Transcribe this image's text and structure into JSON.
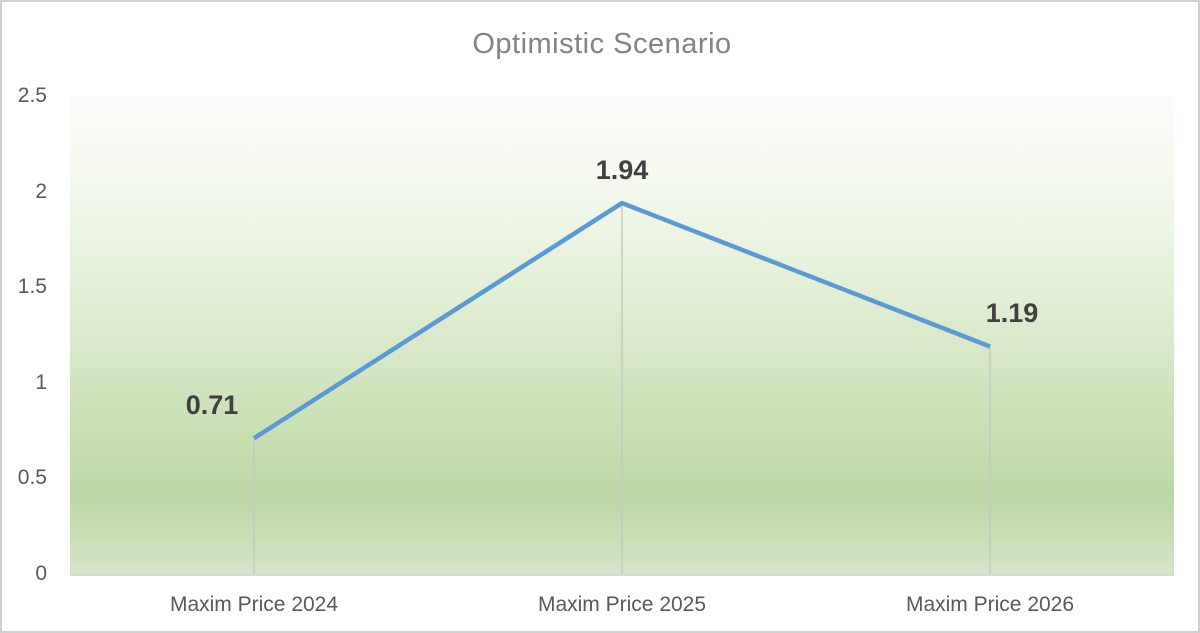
{
  "title": "Optimistic Scenario",
  "chart_data": {
    "type": "line",
    "title": "Optimistic Scenario",
    "categories": [
      "Maxim Price 2024",
      "Maxim Price 2025",
      "Maxim Price 2026"
    ],
    "values": [
      0.71,
      1.94,
      1.19
    ],
    "data_labels": [
      "0.71",
      "1.94",
      "1.19"
    ],
    "xlabel": "",
    "ylabel": "",
    "ylim": [
      0,
      2.5
    ],
    "yticks": [
      0,
      0.5,
      1,
      1.5,
      2,
      2.5
    ],
    "ytick_labels": [
      "0",
      "0.5",
      "1",
      "1.5",
      "2",
      "2.5"
    ],
    "grid": false,
    "legend": "none",
    "features": [
      "drop-lines",
      "data-labels-above-points",
      "gradient-plot-background"
    ]
  },
  "colors": {
    "line": "#5B9BD5",
    "data_label": "#404040",
    "title": "#828282",
    "axis_text": "#595959",
    "axis_line": "#d9d9d9",
    "drop_line": "#c5cbbd",
    "frame_border": "#d0d0d0",
    "plot_gradient": [
      "#fcfdfa",
      "#f4f9ef",
      "#e1eed4",
      "#cbe0b6",
      "#bbd7a3",
      "#d7e5c9"
    ]
  }
}
